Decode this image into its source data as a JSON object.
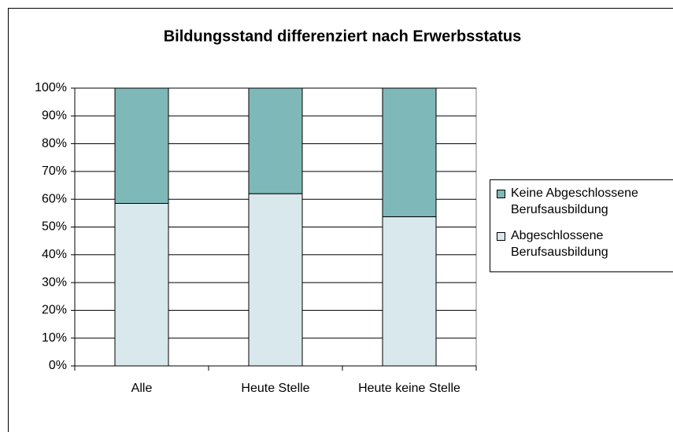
{
  "chart_data": {
    "type": "stacked_bar",
    "title": "Bildungsstand differenziert nach Erwerbsstatus",
    "categories": [
      "Alle",
      "Heute Stelle",
      "Heute keine Stelle"
    ],
    "series": [
      {
        "name": "Abgeschlossene Berufsausbildung",
        "color": "#d9e8ec",
        "values": [
          58.5,
          62,
          53.7
        ]
      },
      {
        "name": "Keine Abgeschlossene Berufsausbildung",
        "color": "#7fb8b8",
        "values": [
          41.5,
          38,
          46.3
        ]
      }
    ],
    "ylim": [
      0,
      100
    ],
    "yticks": [
      {
        "value": 0,
        "label": "0%"
      },
      {
        "value": 10,
        "label": "10%"
      },
      {
        "value": 20,
        "label": "20%"
      },
      {
        "value": 30,
        "label": "30%"
      },
      {
        "value": 40,
        "label": "40%"
      },
      {
        "value": 50,
        "label": "50%"
      },
      {
        "value": 60,
        "label": "60%"
      },
      {
        "value": 70,
        "label": "70%"
      },
      {
        "value": 80,
        "label": "80%"
      },
      {
        "value": 90,
        "label": "90%"
      },
      {
        "value": 100,
        "label": "100%"
      }
    ],
    "grid": true,
    "legend": "right"
  }
}
